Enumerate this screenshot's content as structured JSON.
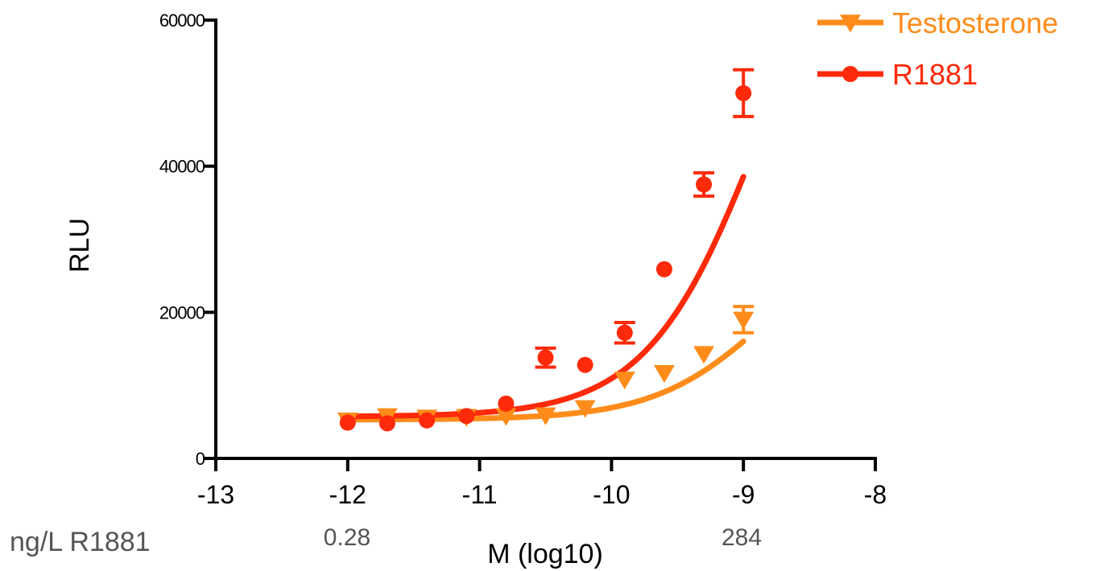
{
  "chart_data": {
    "type": "scatter",
    "title": "",
    "xlabel": "M (log10)",
    "ylabel": "RLU",
    "xlim": [
      -13,
      -8
    ],
    "ylim": [
      0,
      60000
    ],
    "x_ticks": [
      -13,
      -12,
      -11,
      -10,
      -9,
      -8
    ],
    "x_tick_labels": [
      "-13",
      "-12",
      "-11",
      "-10",
      "-9",
      "-8"
    ],
    "y_ticks": [
      0,
      20000,
      40000,
      60000
    ],
    "y_tick_labels": [
      "0",
      "20000",
      "40000",
      "60000"
    ],
    "grid": false,
    "legend_position": "top-right",
    "series": [
      {
        "name": "Testosterone",
        "color": "#ff8c1a",
        "marker": "triangle-down",
        "x": [
          -12.0,
          -11.7,
          -11.4,
          -11.1,
          -10.8,
          -10.5,
          -10.2,
          -9.9,
          -9.6,
          -9.3,
          -9.0
        ],
        "y": [
          5200,
          5800,
          5600,
          5700,
          5800,
          5900,
          6900,
          10800,
          11700,
          14300,
          19000
        ],
        "err": [
          0,
          0,
          0,
          0,
          0,
          0,
          0,
          0,
          0,
          0,
          1800
        ],
        "fit": {
          "bottom": 5300,
          "top": 33000,
          "logEC50": -8.8,
          "hill": 1.0
        }
      },
      {
        "name": "R1881",
        "color": "#ff2a0a",
        "marker": "circle",
        "x": [
          -12.0,
          -11.7,
          -11.4,
          -11.1,
          -10.8,
          -10.5,
          -10.2,
          -9.9,
          -9.6,
          -9.3,
          -9.0
        ],
        "y": [
          4900,
          4800,
          5200,
          5800,
          7500,
          13800,
          12800,
          17200,
          25900,
          37500,
          50000
        ],
        "err": [
          0,
          0,
          0,
          0,
          0,
          1300,
          0,
          1400,
          0,
          1600,
          3200
        ],
        "fit": {
          "bottom": 5700,
          "top": 85000,
          "logEC50": -8.85,
          "hill": 1.0
        }
      }
    ],
    "annotations": [
      {
        "text": "ng/L  R1881"
      },
      {
        "text": "0.28",
        "x": -12
      },
      {
        "text": "284",
        "x": -9
      }
    ]
  }
}
